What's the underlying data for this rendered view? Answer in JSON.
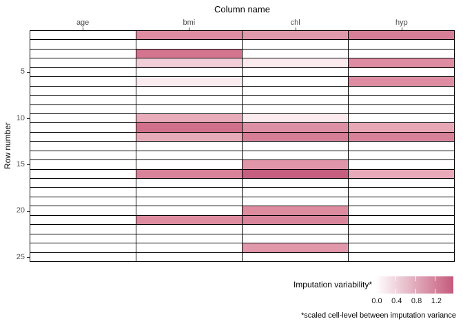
{
  "title": "Column name",
  "y_axis": {
    "label": "Row number",
    "tick_rows": [
      5,
      10,
      15,
      20,
      25
    ]
  },
  "columns": [
    "age",
    "bmi",
    "chl",
    "hyp"
  ],
  "colors": {
    "grid_line": "#000000",
    "cell_default": "#FFFFFF",
    "axis_text": "#4d4d4d",
    "gradient_start": "#FFFFFF",
    "gradient_end": "#C55A7C"
  },
  "legend": {
    "title": "Imputation variability*",
    "tick_values": [
      0.0,
      0.4,
      0.8,
      1.2
    ],
    "tick_labels": [
      "0.0",
      "0.4",
      "0.8",
      "1.2"
    ],
    "range_max": 1.57
  },
  "footnote": "*scaled cell-level between imputation variance",
  "chart_data": {
    "type": "heatmap",
    "title": "Column name",
    "xlabel": "Column name",
    "ylabel": "Row number",
    "columns": [
      "age",
      "bmi",
      "chl",
      "hyp"
    ],
    "n_rows": 25,
    "y_ticks": [
      5,
      10,
      15,
      20,
      25
    ],
    "legend_title": "Imputation variability*",
    "legend_ticks": [
      0.0,
      0.4,
      0.8,
      1.2
    ],
    "legend_range": [
      0,
      1.57
    ],
    "note": "cells not listed are observed (white, no imputation variability)",
    "cells": [
      {
        "row": 1,
        "column": "bmi",
        "value": 0.8,
        "color": "#DD8CA1"
      },
      {
        "row": 1,
        "column": "chl",
        "value": 0.72,
        "color": "#E098AB"
      },
      {
        "row": 1,
        "column": "hyp",
        "value": 0.95,
        "color": "#D67E96"
      },
      {
        "row": 3,
        "column": "bmi",
        "value": 1.05,
        "color": "#D3758E"
      },
      {
        "row": 4,
        "column": "bmi",
        "value": 0.3,
        "color": "#F1CED8"
      },
      {
        "row": 4,
        "column": "chl",
        "value": 0.1,
        "color": "#FBEBEF"
      },
      {
        "row": 4,
        "column": "hyp",
        "value": 0.8,
        "color": "#DD8CA1"
      },
      {
        "row": 6,
        "column": "bmi",
        "value": 0.1,
        "color": "#FAEBEF"
      },
      {
        "row": 6,
        "column": "hyp",
        "value": 0.8,
        "color": "#DD8CA1"
      },
      {
        "row": 10,
        "column": "bmi",
        "value": 0.55,
        "color": "#E8ACBA"
      },
      {
        "row": 10,
        "column": "chl",
        "value": 0.1,
        "color": "#FBEBEF"
      },
      {
        "row": 11,
        "column": "bmi",
        "value": 1.15,
        "color": "#D0708A"
      },
      {
        "row": 11,
        "column": "chl",
        "value": 0.78,
        "color": "#DD8FA3"
      },
      {
        "row": 11,
        "column": "hyp",
        "value": 0.58,
        "color": "#E7A7B5"
      },
      {
        "row": 12,
        "column": "bmi",
        "value": 0.55,
        "color": "#E7AAB8"
      },
      {
        "row": 12,
        "column": "chl",
        "value": 0.97,
        "color": "#D57E96"
      },
      {
        "row": 12,
        "column": "hyp",
        "value": 0.92,
        "color": "#D8829A"
      },
      {
        "row": 15,
        "column": "chl",
        "value": 0.73,
        "color": "#E095A8"
      },
      {
        "row": 16,
        "column": "bmi",
        "value": 0.9,
        "color": "#D9839B"
      },
      {
        "row": 16,
        "column": "chl",
        "value": 1.45,
        "color": "#C65E80"
      },
      {
        "row": 16,
        "column": "hyp",
        "value": 0.57,
        "color": "#E8A9B8"
      },
      {
        "row": 20,
        "column": "chl",
        "value": 0.8,
        "color": "#DD8CA0"
      },
      {
        "row": 21,
        "column": "bmi",
        "value": 0.8,
        "color": "#DD8CA0"
      },
      {
        "row": 21,
        "column": "chl",
        "value": 0.9,
        "color": "#D8849B"
      },
      {
        "row": 24,
        "column": "chl",
        "value": 0.7,
        "color": "#E298AB"
      }
    ]
  }
}
